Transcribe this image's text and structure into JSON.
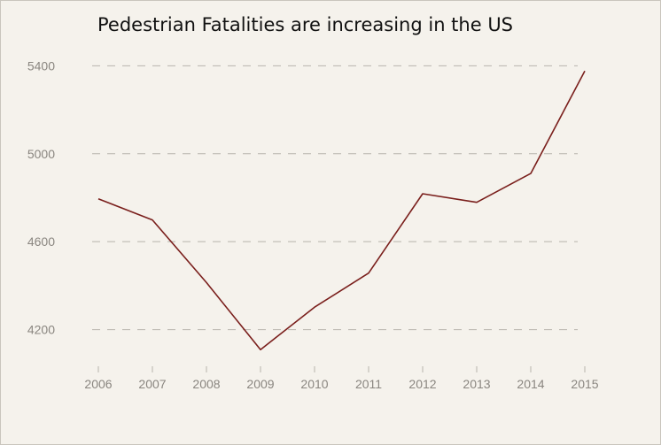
{
  "chart_data": {
    "type": "line",
    "title": "Pedestrian Fatalities are increasing in the US",
    "xlabel": "",
    "ylabel": "",
    "x": [
      "2006",
      "2007",
      "2008",
      "2009",
      "2010",
      "2011",
      "2012",
      "2013",
      "2014",
      "2015"
    ],
    "series": [
      {
        "values": [
          4795,
          4699,
          4414,
          4109,
          4302,
          4457,
          4818,
          4779,
          4910,
          5376
        ]
      }
    ],
    "yticks": [
      4200,
      4600,
      5000,
      5400
    ],
    "ylim": [
      3965,
      5490
    ],
    "grid": "horizontal dashed",
    "line_color": "#7a1f1c",
    "grid_color": "#b8b4ad",
    "tick_color": "#8a8680",
    "background": "#f5f2ec"
  }
}
